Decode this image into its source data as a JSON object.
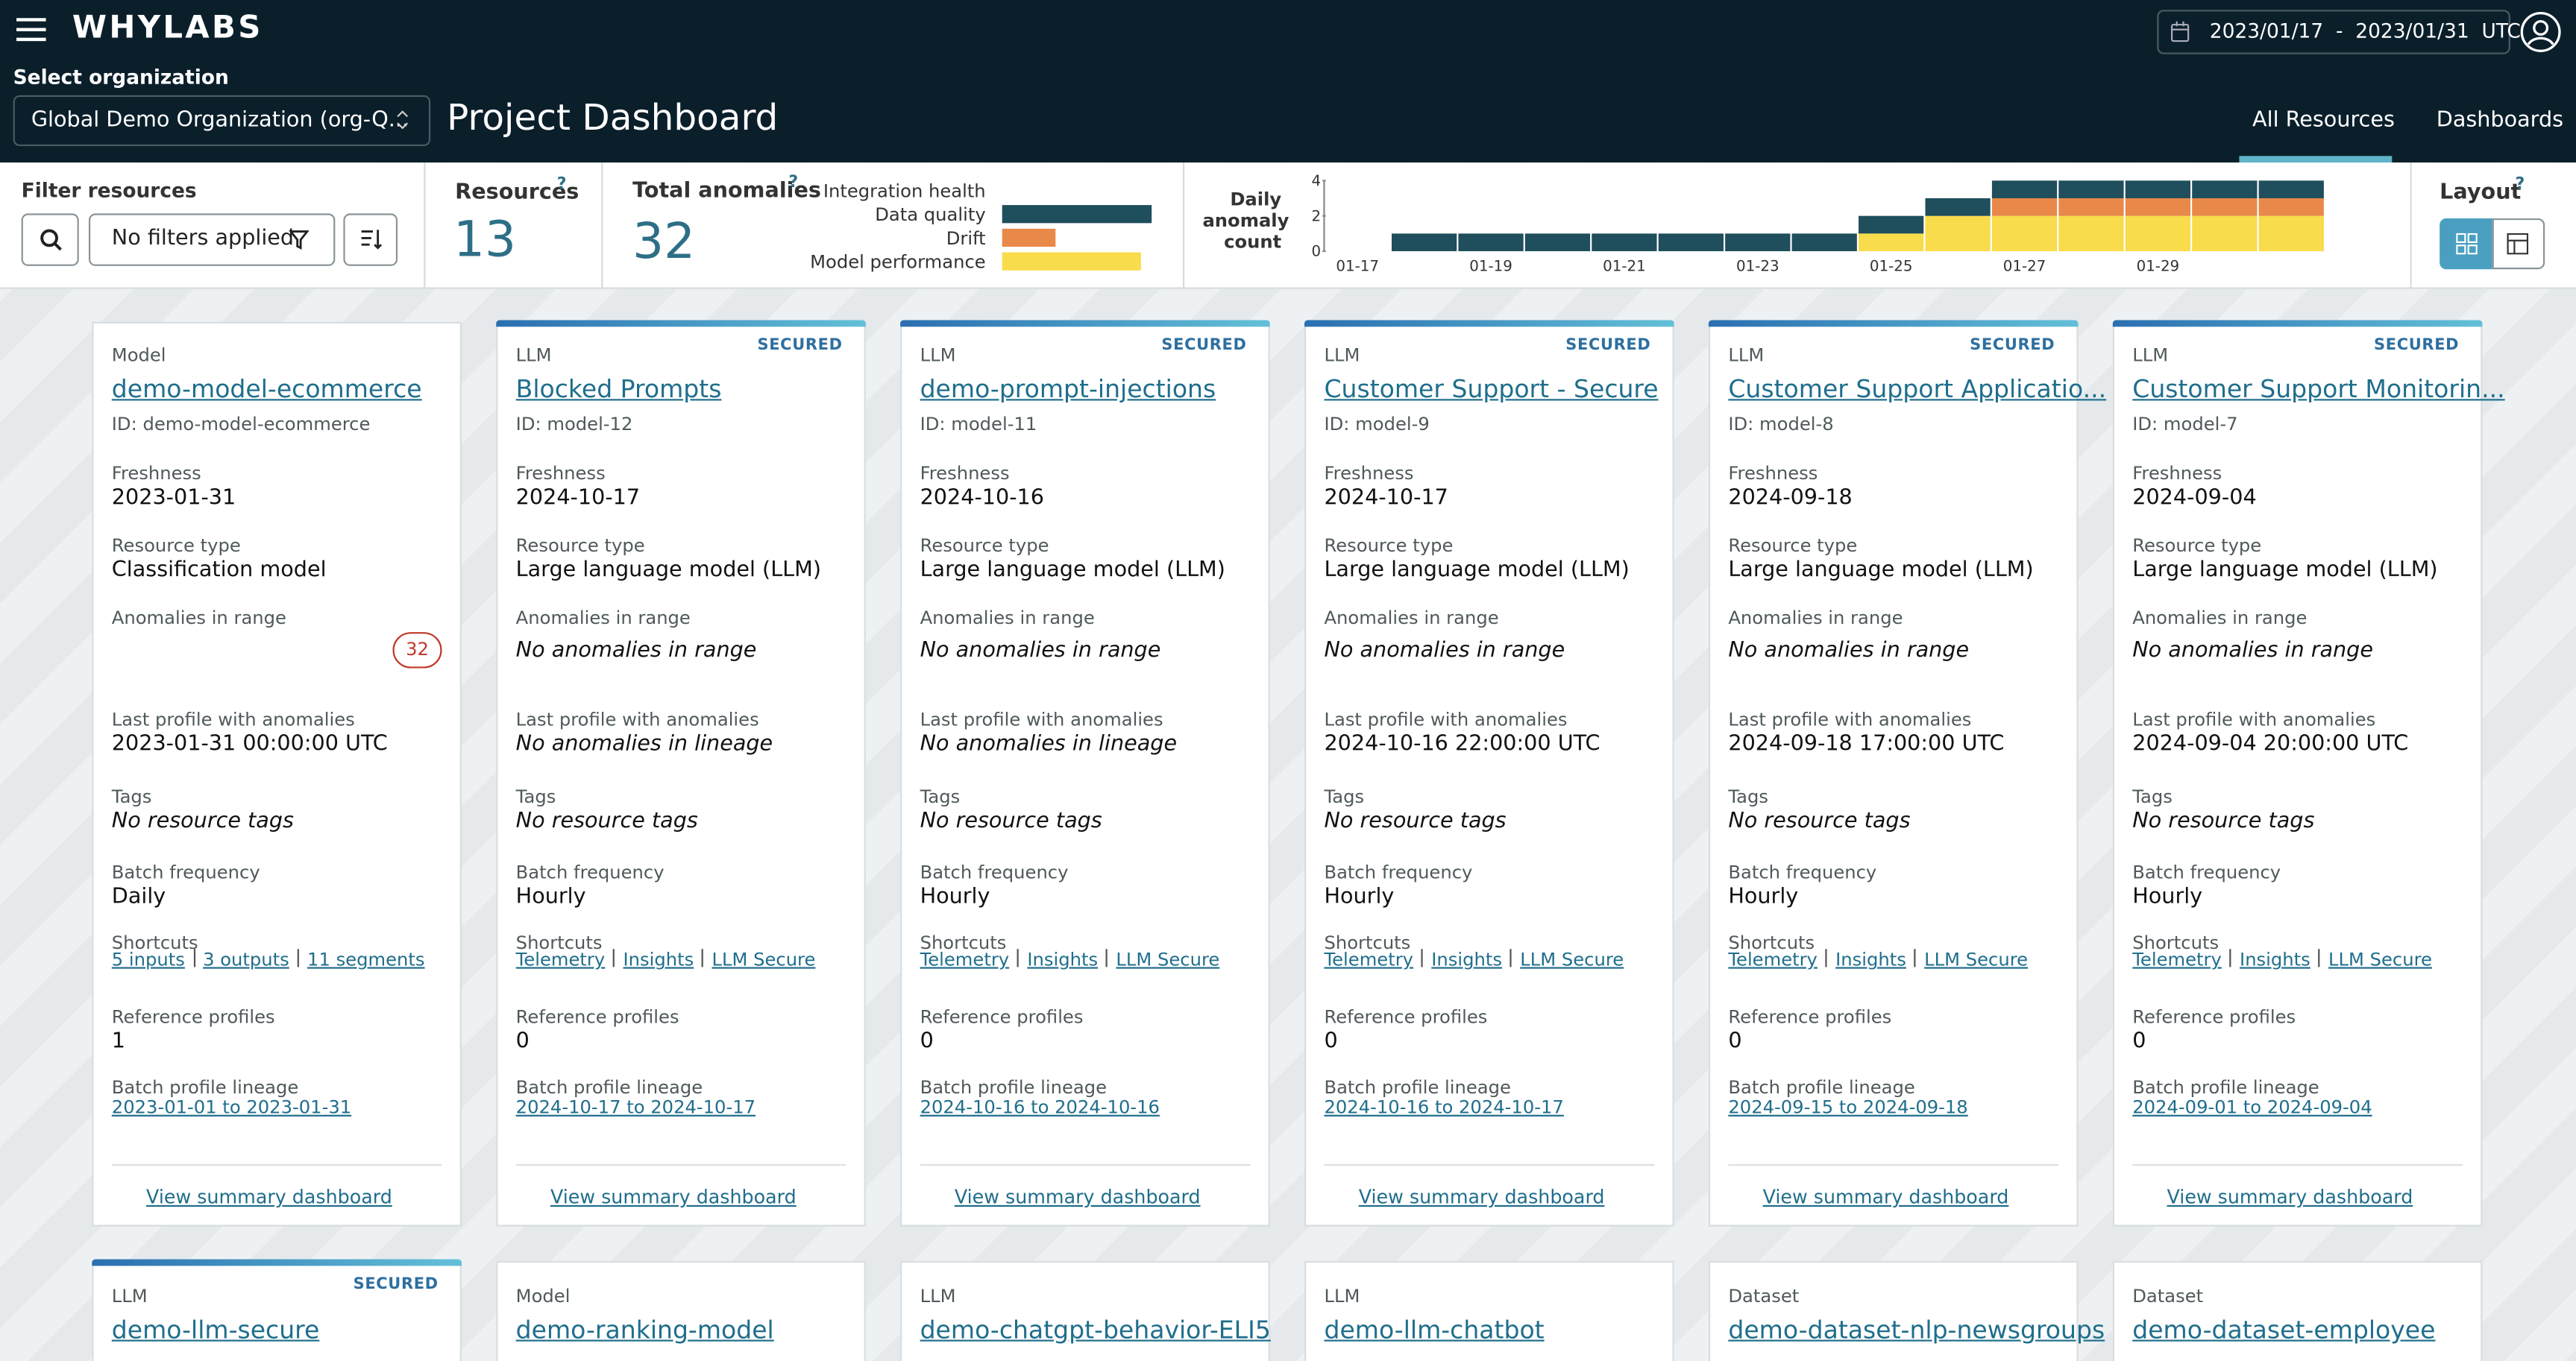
{
  "header": {
    "logo": "WHYLABS",
    "date_range": "2023/01/17  -  2023/01/31  UTC",
    "org_label": "Select organization",
    "org_value": "Global Demo Organization (org-Q...",
    "page_title": "Project Dashboard",
    "tabs": [
      "All Resources",
      "Dashboards"
    ]
  },
  "filter": {
    "label": "Filter resources",
    "value": "No filters applied"
  },
  "resources": {
    "label": "Resources",
    "help": "?",
    "count": 13
  },
  "anomalies": {
    "label": "Total anomalies",
    "help": "?",
    "total": 32,
    "breakdown": {
      "categories": [
        "Integration health",
        "Data quality",
        "Drift",
        "Model performance"
      ],
      "values": [
        0,
        14,
        5,
        13
      ],
      "colors": [
        "#9aa5a8",
        "#1f4e5c",
        "#e8894a",
        "#f8dc4b"
      ]
    },
    "chart": {
      "label": "Daily anomaly count",
      "categories": [
        "01-17",
        null,
        "01-19",
        null,
        "01-21",
        null,
        "01-23",
        null,
        "01-25",
        null,
        "01-27",
        null,
        "01-29",
        null,
        null
      ],
      "series": [
        {
          "color": "#f8dc4b",
          "values": [
            0,
            0,
            0,
            0,
            0,
            0,
            0,
            0,
            1,
            2,
            2,
            2,
            2,
            2,
            2
          ]
        },
        {
          "color": "#e8894a",
          "values": [
            0,
            0,
            0,
            0,
            0,
            0,
            0,
            0,
            0,
            0,
            1,
            1,
            1,
            1,
            1
          ]
        },
        {
          "color": "#1f4e5c",
          "values": [
            0,
            1,
            1,
            1,
            1,
            1,
            1,
            1,
            1,
            1,
            1,
            1,
            1,
            1,
            1
          ]
        }
      ],
      "ylim": [
        0,
        4
      ],
      "yticks": [
        0,
        2,
        4
      ]
    }
  },
  "layout": {
    "label": "Layout",
    "help": "?"
  },
  "card_labels": {
    "freshness": "Freshness",
    "resource_type": "Resource type",
    "anomalies": "Anomalies in range",
    "last_profile": "Last profile with anomalies",
    "tags": "Tags",
    "batch_frequency": "Batch frequency",
    "shortcuts": "Shortcuts",
    "reference_profiles": "Reference profiles",
    "lineage": "Batch profile lineage",
    "view": "View summary dashboard",
    "secured": "SECURED"
  },
  "cards": [
    {
      "type": "Model",
      "secured": false,
      "name": "demo-model-ecommerce",
      "id": "ID: demo-model-ecommerce",
      "freshness": "2023-01-31",
      "resource_type": "Classification model",
      "anomaly_count": 32,
      "last_profile": "2023-01-31 00:00:00 UTC",
      "tags": "No resource tags",
      "batch_frequency": "Daily",
      "shortcuts": [
        "5 inputs",
        "3 outputs",
        "11 segments"
      ],
      "reference_profiles": 1,
      "lineage": "2023-01-01 to 2023-01-31"
    },
    {
      "type": "LLM",
      "secured": true,
      "name": "Blocked Prompts",
      "id": "ID: model-12",
      "freshness": "2024-10-17",
      "resource_type": "Large language model (LLM)",
      "anomalies_text": "No anomalies in range",
      "last_profile": "No anomalies in lineage",
      "tags": "No resource tags",
      "batch_frequency": "Hourly",
      "shortcuts": [
        "Telemetry",
        "Insights",
        "LLM Secure"
      ],
      "reference_profiles": 0,
      "lineage": "2024-10-17 to 2024-10-17"
    },
    {
      "type": "LLM",
      "secured": true,
      "name": "demo-prompt-injections",
      "id": "ID: model-11",
      "freshness": "2024-10-16",
      "resource_type": "Large language model (LLM)",
      "anomalies_text": "No anomalies in range",
      "last_profile": "No anomalies in lineage",
      "tags": "No resource tags",
      "batch_frequency": "Hourly",
      "shortcuts": [
        "Telemetry",
        "Insights",
        "LLM Secure"
      ],
      "reference_profiles": 0,
      "lineage": "2024-10-16 to 2024-10-16"
    },
    {
      "type": "LLM",
      "secured": true,
      "name": "Customer Support - Secure",
      "id": "ID: model-9",
      "freshness": "2024-10-17",
      "resource_type": "Large language model (LLM)",
      "anomalies_text": "No anomalies in range",
      "last_profile": "2024-10-16 22:00:00 UTC",
      "tags": "No resource tags",
      "batch_frequency": "Hourly",
      "shortcuts": [
        "Telemetry",
        "Insights",
        "LLM Secure"
      ],
      "reference_profiles": 0,
      "lineage": "2024-10-16 to 2024-10-17"
    },
    {
      "type": "LLM",
      "secured": true,
      "name": "Customer Support Applicatio...",
      "id": "ID: model-8",
      "freshness": "2024-09-18",
      "resource_type": "Large language model (LLM)",
      "anomalies_text": "No anomalies in range",
      "last_profile": "2024-09-18 17:00:00 UTC",
      "tags": "No resource tags",
      "batch_frequency": "Hourly",
      "shortcuts": [
        "Telemetry",
        "Insights",
        "LLM Secure"
      ],
      "reference_profiles": 0,
      "lineage": "2024-09-15 to 2024-09-18"
    },
    {
      "type": "LLM",
      "secured": true,
      "name": "Customer Support Monitorin...",
      "id": "ID: model-7",
      "freshness": "2024-09-04",
      "resource_type": "Large language model (LLM)",
      "anomalies_text": "No anomalies in range",
      "last_profile": "2024-09-04 20:00:00 UTC",
      "tags": "No resource tags",
      "batch_frequency": "Hourly",
      "shortcuts": [
        "Telemetry",
        "Insights",
        "LLM Secure"
      ],
      "reference_profiles": 0,
      "lineage": "2024-09-01 to 2024-09-04"
    }
  ],
  "more_cards": [
    {
      "type": "LLM",
      "secured": true,
      "name": "demo-llm-secure"
    },
    {
      "type": "Model",
      "secured": false,
      "name": "demo-ranking-model"
    },
    {
      "type": "LLM",
      "secured": false,
      "name": "demo-chatgpt-behavior-ELI5"
    },
    {
      "type": "LLM",
      "secured": false,
      "name": "demo-llm-chatbot"
    },
    {
      "type": "Dataset",
      "secured": false,
      "name": "demo-dataset-nlp-newsgroups"
    },
    {
      "type": "Dataset",
      "secured": false,
      "name": "demo-dataset-employee"
    }
  ]
}
